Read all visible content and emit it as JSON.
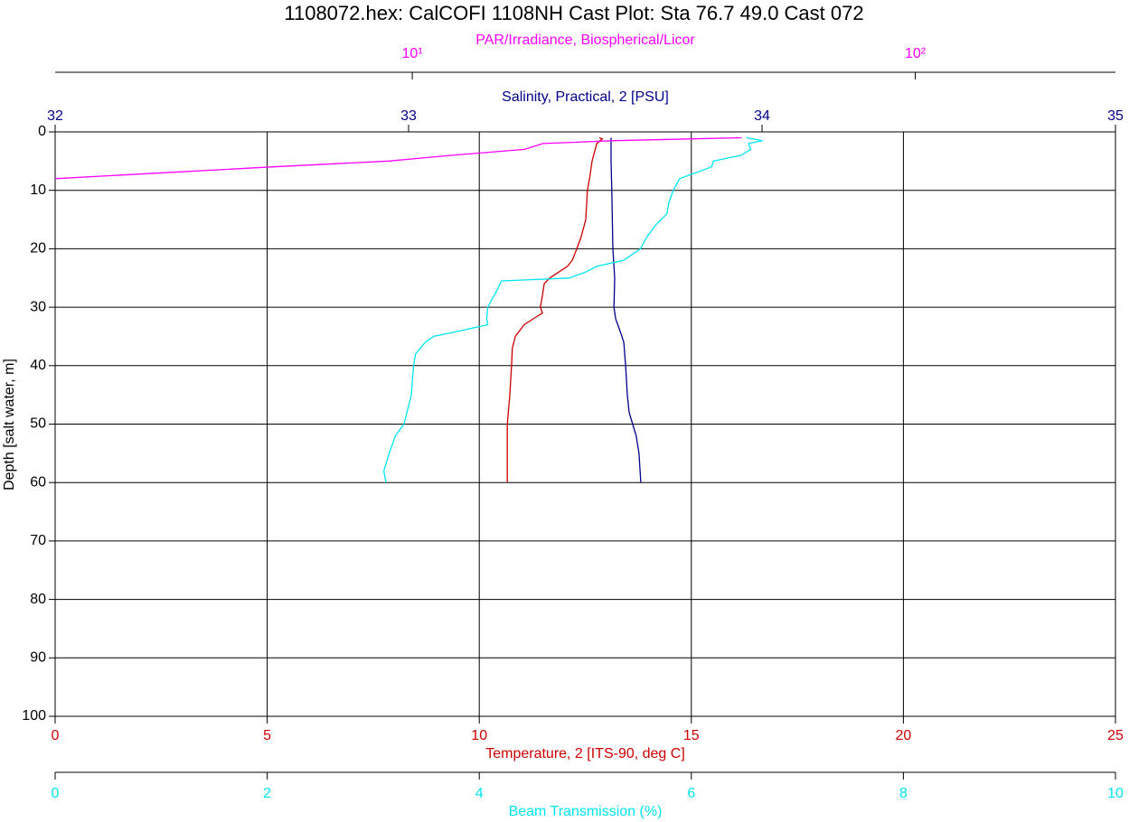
{
  "chart_data": {
    "type": "profile",
    "title": "1108072.hex: CalCOFI 1108NH Cast Plot: Sta 76.7 49.0 Cast 072",
    "ylabel": "Depth [salt water, m]",
    "ylim": [
      0,
      100
    ],
    "yticks": [
      0,
      10,
      20,
      30,
      40,
      50,
      60,
      70,
      80,
      90,
      100
    ],
    "y_inverted": true,
    "series": [
      {
        "name": "Temperature, 2 [ITS-90, deg C]",
        "color": "#cc0000",
        "xscale": "linear",
        "grid": true,
        "xlim": [
          0,
          25
        ],
        "xticks": [
          0,
          5,
          10,
          15,
          20,
          25
        ],
        "x": [
          12.83,
          12.9,
          12.77,
          12.66,
          12.6,
          12.55,
          12.51,
          12.4,
          12.3,
          12.19,
          12.08,
          11.87,
          11.66,
          11.53,
          11.49,
          11.44,
          11.49,
          11.27,
          11.06,
          10.85,
          10.78,
          10.76,
          10.72,
          10.66,
          10.66,
          10.66
        ],
        "y": [
          1,
          1.2,
          2,
          5,
          8,
          10,
          15,
          18,
          20,
          22,
          23,
          24,
          25,
          26,
          28,
          30,
          31,
          32,
          33,
          35,
          37,
          40,
          45,
          50,
          55,
          60
        ]
      },
      {
        "name": "Salinity, Practical, 2 [PSU]",
        "color": "#00008b",
        "xscale": "linear",
        "grid": false,
        "xlim": [
          32,
          35
        ],
        "xticks": [
          32,
          33,
          34,
          35
        ],
        "x": [
          33.573,
          33.573,
          33.573,
          33.575,
          33.578,
          33.583,
          33.581,
          33.586,
          33.598,
          33.609,
          33.614,
          33.619,
          33.624,
          33.634,
          33.644,
          33.652,
          33.655,
          33.657
        ],
        "y": [
          1,
          2,
          5,
          10,
          20,
          25,
          30,
          32,
          34,
          36,
          40,
          45,
          48,
          50,
          52,
          55,
          58,
          60
        ]
      },
      {
        "name": "Beam Transmission (%)",
        "color": "#00e5ee",
        "xscale": "linear",
        "grid": false,
        "xlim": [
          0,
          10
        ],
        "xticks": [
          0,
          2,
          4,
          6,
          8,
          10
        ],
        "x": [
          6.52,
          6.67,
          6.54,
          6.56,
          6.47,
          6.21,
          6.19,
          6.04,
          5.89,
          5.83,
          5.79,
          5.77,
          5.66,
          5.58,
          5.52,
          5.36,
          5.11,
          5.0,
          4.85,
          4.21,
          4.17,
          4.08,
          4.07,
          4.08,
          3.83,
          3.57,
          3.49,
          3.4,
          3.38,
          3.36,
          3.29,
          3.21,
          3.15,
          3.1,
          3.12
        ],
        "y": [
          1,
          1.5,
          2,
          3,
          4,
          5,
          6,
          7,
          8,
          10,
          12,
          14,
          16,
          18,
          20,
          22,
          23,
          24,
          25,
          25.5,
          27,
          30,
          32,
          33,
          34,
          35,
          36,
          38,
          40,
          45,
          50,
          52,
          55,
          58,
          60
        ]
      },
      {
        "name": "PAR/Irradiance, Biospherical/Licor",
        "color": "#ff00ff",
        "xscale": "log",
        "grid": false,
        "xlim": [
          1.95,
          250
        ],
        "xticks": [
          {
            "value": 10,
            "label": "10¹"
          },
          {
            "value": 100,
            "label": "10²"
          }
        ],
        "x": [
          45.2,
          25.3,
          18.2,
          16.7,
          12,
          8.98,
          5.24,
          3.19,
          1.95
        ],
        "y": [
          1,
          1.5,
          2,
          3,
          4,
          5,
          6,
          7,
          8
        ]
      }
    ]
  }
}
